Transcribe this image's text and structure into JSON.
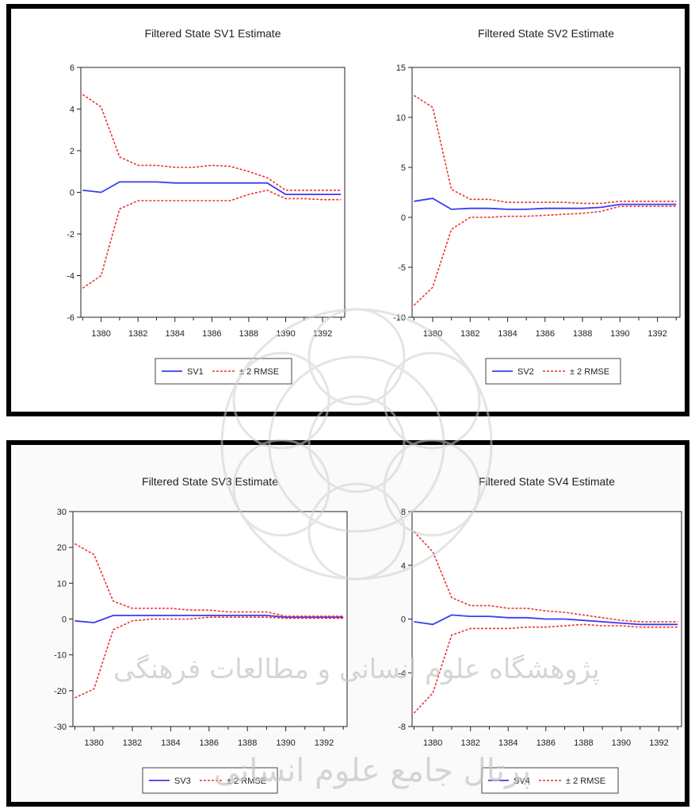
{
  "colors": {
    "state_line": "#3b3bf0",
    "rmse_line": "#ee3333",
    "axis": "#222222",
    "frame": "#000000",
    "watermark": "#c8c8c8"
  },
  "watermark_text": {
    "line1": "پژوهشگاه علوم انسانی و مطالعات فرهنگی",
    "line2": "پرتال جامع علوم انسانی"
  },
  "chart_data": [
    {
      "type": "line",
      "title": "Filtered State SV1 Estimate",
      "x_ticks": [
        "1380",
        "1382",
        "1384",
        "1386",
        "1388",
        "1390",
        "1392"
      ],
      "y_ticks": [
        "6",
        "4",
        "2",
        "0",
        "-2",
        "-4",
        "-6"
      ],
      "ylim": [
        -6,
        6
      ],
      "xlim": [
        1378.9,
        1393.2
      ],
      "legend": {
        "state_label": "SV1",
        "rmse_label": "± 2 RMSE",
        "position": "bottom-center"
      },
      "x": [
        1379,
        1380,
        1381,
        1382,
        1383,
        1384,
        1385,
        1386,
        1387,
        1388,
        1389,
        1390,
        1391,
        1392,
        1393
      ],
      "series": [
        {
          "name": "SV1",
          "style": "solid",
          "values": [
            0.1,
            0.0,
            0.5,
            0.5,
            0.5,
            0.45,
            0.45,
            0.45,
            0.45,
            0.45,
            0.45,
            -0.1,
            -0.1,
            -0.1,
            -0.1
          ]
        },
        {
          "name": "± 2 RMSE",
          "style": "dashed",
          "values": [
            4.7,
            4.1,
            1.7,
            1.3,
            1.3,
            1.2,
            1.2,
            1.3,
            1.25,
            1.0,
            0.7,
            0.1,
            0.1,
            0.1,
            0.1
          ]
        },
        {
          "name": "± 2 RMSE",
          "style": "dashed",
          "values": [
            -4.6,
            -4.0,
            -0.8,
            -0.4,
            -0.4,
            -0.4,
            -0.4,
            -0.4,
            -0.4,
            -0.1,
            0.1,
            -0.3,
            -0.3,
            -0.35,
            -0.35
          ]
        }
      ]
    },
    {
      "type": "line",
      "title": "Filtered State SV2 Estimate",
      "x_ticks": [
        "1380",
        "1382",
        "1384",
        "1386",
        "1388",
        "1390",
        "1392"
      ],
      "y_ticks": [
        "15",
        "10",
        "5",
        "0",
        "-5",
        "-10"
      ],
      "ylim": [
        -10,
        15
      ],
      "xlim": [
        1378.9,
        1393.2
      ],
      "legend": {
        "state_label": "SV2",
        "rmse_label": "± 2 RMSE",
        "position": "bottom-center"
      },
      "x": [
        1379,
        1380,
        1381,
        1382,
        1383,
        1384,
        1385,
        1386,
        1387,
        1388,
        1389,
        1390,
        1391,
        1392,
        1393
      ],
      "series": [
        {
          "name": "SV2",
          "style": "solid",
          "values": [
            1.6,
            1.9,
            0.8,
            0.9,
            0.9,
            0.8,
            0.8,
            0.9,
            0.9,
            0.9,
            1.0,
            1.3,
            1.3,
            1.3,
            1.3
          ]
        },
        {
          "name": "± 2 RMSE",
          "style": "dashed",
          "values": [
            12.2,
            11.0,
            2.8,
            1.8,
            1.8,
            1.5,
            1.5,
            1.5,
            1.5,
            1.4,
            1.4,
            1.6,
            1.6,
            1.6,
            1.6
          ]
        },
        {
          "name": "± 2 RMSE",
          "style": "dashed",
          "values": [
            -8.8,
            -7.0,
            -1.2,
            0.0,
            0.0,
            0.1,
            0.1,
            0.2,
            0.3,
            0.4,
            0.6,
            1.1,
            1.1,
            1.1,
            1.1
          ]
        }
      ]
    },
    {
      "type": "line",
      "title": "Filtered State SV3 Estimate",
      "x_ticks": [
        "1380",
        "1382",
        "1384",
        "1386",
        "1388",
        "1390",
        "1392"
      ],
      "y_ticks": [
        "30",
        "20",
        "10",
        "0",
        "-10",
        "-20",
        "-30"
      ],
      "ylim": [
        -30,
        30
      ],
      "xlim": [
        1378.9,
        1393.2
      ],
      "legend": {
        "state_label": "SV3",
        "rmse_label": "± 2 RMSE",
        "position": "bottom-center"
      },
      "x": [
        1379,
        1380,
        1381,
        1382,
        1383,
        1384,
        1385,
        1386,
        1387,
        1388,
        1389,
        1390,
        1391,
        1392,
        1393
      ],
      "series": [
        {
          "name": "SV3",
          "style": "solid",
          "values": [
            -0.5,
            -1.0,
            1.0,
            1.0,
            1.0,
            1.0,
            1.0,
            1.0,
            1.0,
            1.0,
            1.0,
            0.5,
            0.5,
            0.5,
            0.5
          ]
        },
        {
          "name": "± 2 RMSE",
          "style": "dashed",
          "values": [
            21.0,
            18.0,
            5.0,
            3.0,
            3.0,
            3.0,
            2.5,
            2.5,
            2.0,
            2.0,
            2.0,
            0.8,
            0.8,
            0.8,
            0.8
          ]
        },
        {
          "name": "± 2 RMSE",
          "style": "dashed",
          "values": [
            -22.0,
            -19.5,
            -3.0,
            -0.5,
            0.0,
            0.0,
            0.0,
            0.5,
            0.5,
            0.5,
            0.5,
            0.2,
            0.2,
            0.2,
            0.2
          ]
        }
      ]
    },
    {
      "type": "line",
      "title": "Filtered State SV4 Estimate",
      "x_ticks": [
        "1380",
        "1382",
        "1384",
        "1386",
        "1388",
        "1390",
        "1392"
      ],
      "y_ticks": [
        "8",
        "4",
        "0",
        "-4",
        "-8"
      ],
      "ylim": [
        -8,
        8
      ],
      "xlim": [
        1378.9,
        1393.2
      ],
      "legend": {
        "state_label": "SV4",
        "rmse_label": "± 2 RMSE",
        "position": "bottom-center"
      },
      "x": [
        1379,
        1380,
        1381,
        1382,
        1383,
        1384,
        1385,
        1386,
        1387,
        1388,
        1389,
        1390,
        1391,
        1392,
        1393
      ],
      "series": [
        {
          "name": "SV4",
          "style": "solid",
          "values": [
            -0.2,
            -0.4,
            0.3,
            0.2,
            0.2,
            0.1,
            0.1,
            0.0,
            0.0,
            -0.1,
            -0.2,
            -0.3,
            -0.4,
            -0.4,
            -0.4
          ]
        },
        {
          "name": "± 2 RMSE",
          "style": "dashed",
          "values": [
            6.5,
            5.0,
            1.6,
            1.0,
            1.0,
            0.8,
            0.8,
            0.6,
            0.5,
            0.3,
            0.1,
            -0.1,
            -0.2,
            -0.2,
            -0.2
          ]
        },
        {
          "name": "± 2 RMSE",
          "style": "dashed",
          "values": [
            -7.0,
            -5.5,
            -1.2,
            -0.7,
            -0.7,
            -0.7,
            -0.6,
            -0.6,
            -0.5,
            -0.4,
            -0.5,
            -0.5,
            -0.6,
            -0.6,
            -0.6
          ]
        }
      ]
    }
  ]
}
